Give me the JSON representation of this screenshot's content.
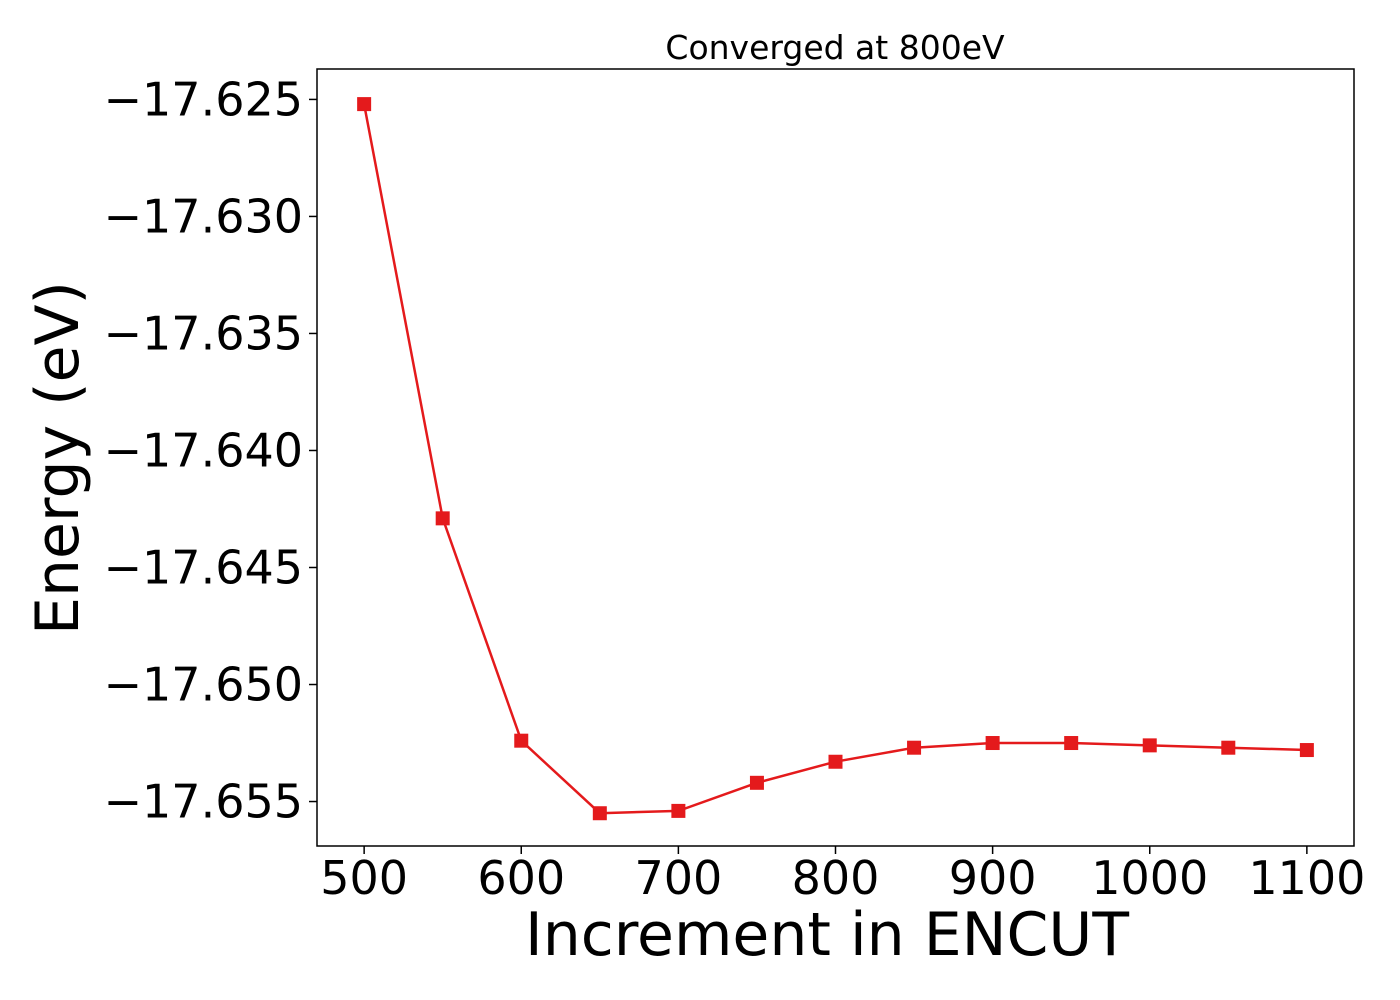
{
  "chart_data": {
    "type": "line",
    "title": "Converged at 800eV",
    "xlabel": "Increment in ENCUT",
    "ylabel": "Energy (eV)",
    "xlim": [
      470,
      1130
    ],
    "ylim": [
      -17.6569,
      -17.6237
    ],
    "xticks": [
      500,
      600,
      700,
      800,
      900,
      1000,
      1100
    ],
    "yticks": [
      -17.625,
      -17.63,
      -17.635,
      -17.64,
      -17.645,
      -17.65,
      -17.655
    ],
    "ytick_labels": [
      "−17.625",
      "−17.630",
      "−17.635",
      "−17.640",
      "−17.645",
      "−17.650",
      "−17.655"
    ],
    "grid": false,
    "series": [
      {
        "marker": "square",
        "color": "#e41a1c",
        "x": [
          500,
          550,
          600,
          650,
          700,
          750,
          800,
          850,
          900,
          950,
          1000,
          1050,
          1100
        ],
        "y": [
          -17.6252,
          -17.6429,
          -17.6524,
          -17.6555,
          -17.6554,
          -17.6542,
          -17.6533,
          -17.6527,
          -17.6525,
          -17.6525,
          -17.6526,
          -17.6527,
          -17.6528
        ]
      }
    ]
  }
}
